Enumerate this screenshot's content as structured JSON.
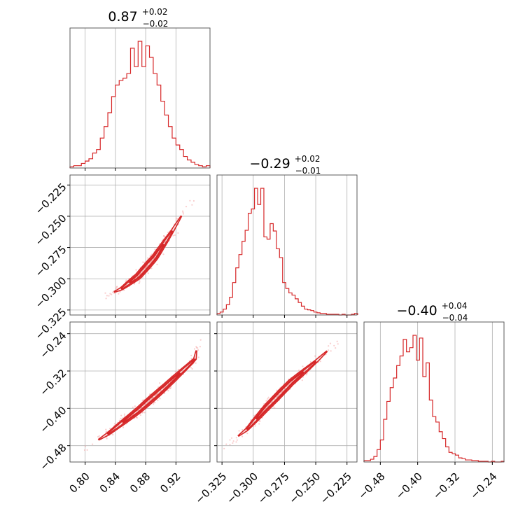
{
  "figure": {
    "background": "#ffffff",
    "series_color": "#d62728",
    "scatter_color": "#f4a6a6"
  },
  "chart_data": {
    "type": "corner",
    "grid": true,
    "parameters": [
      {
        "key": "p0",
        "title_main": "0.87",
        "title_plus": "+0.02",
        "title_minus": "−0.02",
        "range": [
          0.78,
          0.965
        ]
      },
      {
        "key": "p1",
        "title_main": "−0.29",
        "title_plus": "+0.02",
        "title_minus": "−0.01",
        "range": [
          -0.329,
          -0.217
        ]
      },
      {
        "key": "p2",
        "title_main": "−0.40",
        "title_plus": "+0.04",
        "title_minus": "−0.04",
        "range": [
          -0.515,
          -0.215
        ]
      }
    ],
    "ticks": {
      "p0": {
        "values": [
          0.8,
          0.84,
          0.88,
          0.92
        ],
        "labels": [
          "0.80",
          "0.84",
          "0.88",
          "0.92"
        ]
      },
      "p1": {
        "values": [
          -0.325,
          -0.3,
          -0.275,
          -0.25,
          -0.225
        ],
        "labels": [
          "−0.325",
          "−0.300",
          "−0.275",
          "−0.250",
          "−0.225"
        ]
      },
      "p2": {
        "values": [
          -0.48,
          -0.4,
          -0.32,
          -0.24
        ],
        "labels": [
          "−0.48",
          "−0.40",
          "−0.32",
          "−0.24"
        ]
      }
    },
    "histograms": [
      {
        "param": "p0",
        "bin_edges": [
          0.78,
          0.785,
          0.79,
          0.795,
          0.8,
          0.805,
          0.81,
          0.815,
          0.82,
          0.825,
          0.83,
          0.835,
          0.84,
          0.845,
          0.85,
          0.855,
          0.86,
          0.865,
          0.87,
          0.875,
          0.88,
          0.885,
          0.89,
          0.895,
          0.9,
          0.905,
          0.91,
          0.915,
          0.92,
          0.925,
          0.93,
          0.935,
          0.94,
          0.945,
          0.95,
          0.955,
          0.96,
          0.965
        ],
        "counts": [
          1,
          2,
          2,
          4,
          6,
          8,
          13,
          16,
          26,
          36,
          48,
          62,
          72,
          76,
          78,
          82,
          104,
          88,
          110,
          88,
          106,
          96,
          82,
          72,
          58,
          46,
          36,
          26,
          20,
          16,
          10,
          7,
          5,
          3,
          2,
          1,
          2
        ]
      },
      {
        "param": "p1",
        "bin_edges": [
          -0.329,
          -0.3265,
          -0.324,
          -0.3215,
          -0.319,
          -0.3165,
          -0.314,
          -0.3115,
          -0.309,
          -0.3065,
          -0.304,
          -0.3015,
          -0.299,
          -0.2965,
          -0.294,
          -0.2915,
          -0.289,
          -0.2865,
          -0.284,
          -0.2815,
          -0.279,
          -0.2765,
          -0.274,
          -0.2715,
          -0.269,
          -0.2665,
          -0.264,
          -0.2615,
          -0.259,
          -0.2565,
          -0.254,
          -0.2515,
          -0.249,
          -0.2465,
          -0.244,
          -0.2415,
          -0.239,
          -0.2365,
          -0.234,
          -0.2315,
          -0.229,
          -0.2265,
          -0.224,
          -0.2215,
          -0.219,
          -0.2165
        ],
        "counts": [
          2,
          4,
          8,
          14,
          24,
          44,
          64,
          82,
          100,
          115,
          138,
          144,
          172,
          150,
          172,
          106,
          103,
          124,
          114,
          90,
          78,
          44,
          36,
          30,
          27,
          22,
          17,
          12,
          8,
          7,
          6,
          4,
          3,
          2,
          2,
          1,
          1,
          1,
          1,
          0,
          1,
          0,
          0,
          1,
          2
        ]
      },
      {
        "param": "p2",
        "bin_edges": [
          -0.515,
          -0.508,
          -0.501,
          -0.494,
          -0.487,
          -0.48,
          -0.473,
          -0.466,
          -0.459,
          -0.452,
          -0.445,
          -0.438,
          -0.431,
          -0.424,
          -0.417,
          -0.41,
          -0.403,
          -0.396,
          -0.389,
          -0.382,
          -0.375,
          -0.368,
          -0.361,
          -0.354,
          -0.347,
          -0.34,
          -0.333,
          -0.326,
          -0.319,
          -0.312,
          -0.305,
          -0.298,
          -0.291,
          -0.284,
          -0.277,
          -0.27,
          -0.263,
          -0.256,
          -0.249,
          -0.242,
          -0.235,
          -0.228,
          -0.221,
          -0.215
        ],
        "counts": [
          2,
          2,
          4,
          8,
          18,
          32,
          62,
          88,
          108,
          122,
          140,
          154,
          178,
          160,
          166,
          184,
          148,
          180,
          124,
          144,
          90,
          66,
          58,
          44,
          34,
          22,
          14,
          12,
          10,
          6,
          5,
          3,
          3,
          2,
          2,
          1,
          1,
          1,
          0,
          1,
          0,
          0,
          1
        ]
      }
    ],
    "scatter_pairs": [
      {
        "x": "p0",
        "y": "p1",
        "ridge": [
          [
            0.825,
            -0.314
          ],
          [
            0.848,
            -0.308
          ],
          [
            0.87,
            -0.298
          ],
          [
            0.892,
            -0.283
          ],
          [
            0.915,
            -0.262
          ],
          [
            0.945,
            -0.232
          ]
        ]
      },
      {
        "x": "p0",
        "y": "p2",
        "ridge": [
          [
            0.8,
            -0.485
          ],
          [
            0.83,
            -0.455
          ],
          [
            0.87,
            -0.405
          ],
          [
            0.905,
            -0.355
          ],
          [
            0.945,
            -0.295
          ],
          [
            0.95,
            -0.25
          ]
        ]
      },
      {
        "x": "p1",
        "y": "p2",
        "ridge": [
          [
            -0.322,
            -0.48
          ],
          [
            -0.305,
            -0.445
          ],
          [
            -0.29,
            -0.4
          ],
          [
            -0.27,
            -0.345
          ],
          [
            -0.25,
            -0.3
          ],
          [
            -0.228,
            -0.245
          ]
        ]
      }
    ]
  }
}
